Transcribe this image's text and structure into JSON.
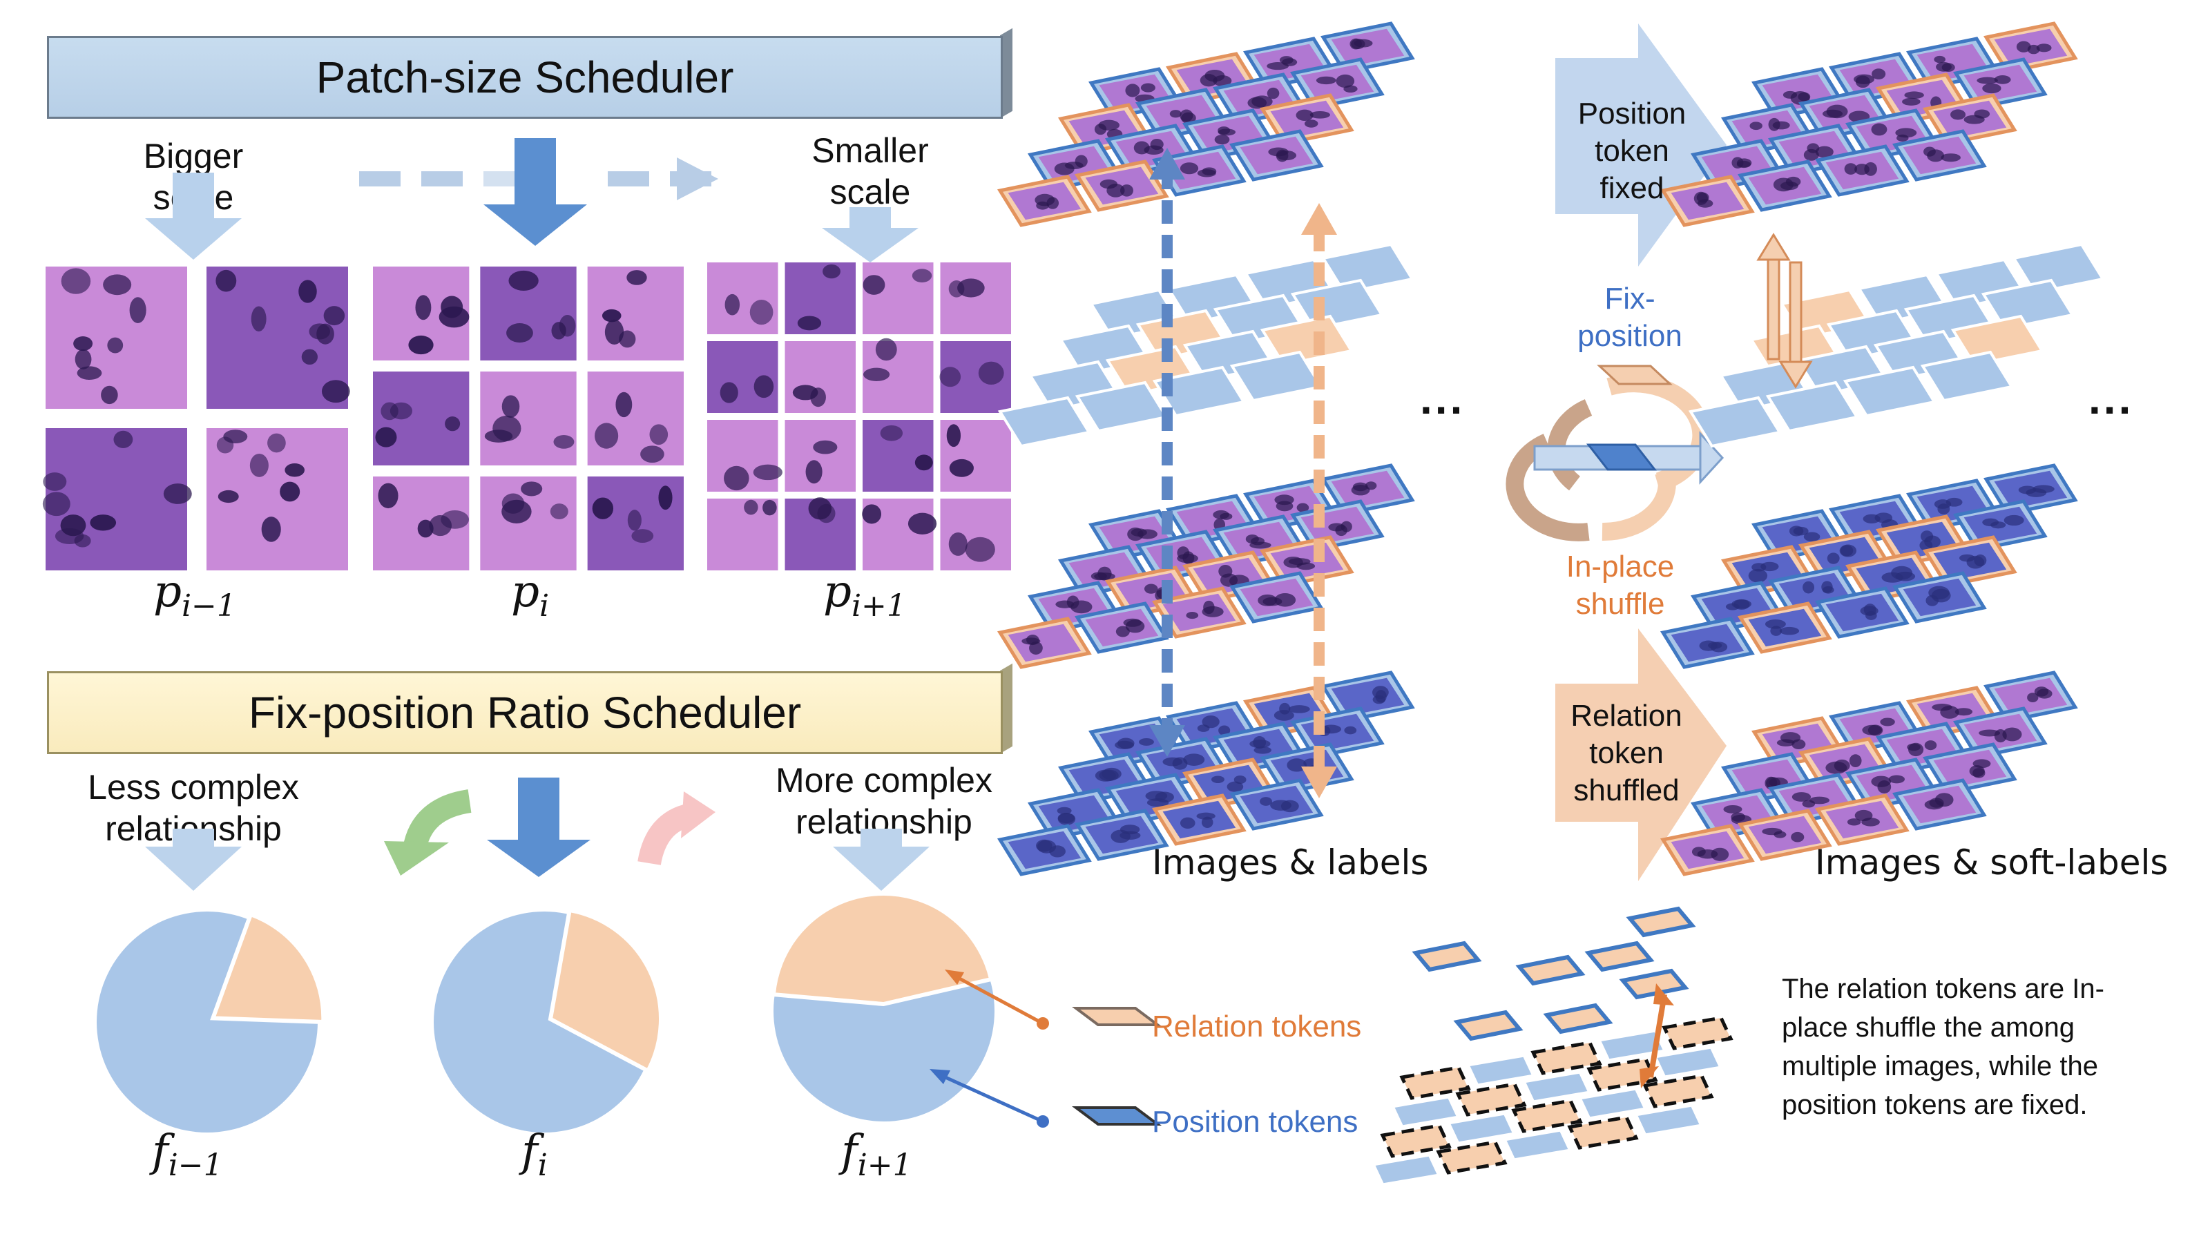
{
  "patch_scheduler": {
    "title": "Patch-size Scheduler",
    "bigger_scale": "Bigger scale",
    "smaller_scale": "Smaller scale",
    "labels": [
      "p_{i−1}",
      "p_i",
      "p_{i+1}"
    ],
    "grid_sizes": [
      2,
      3,
      4
    ]
  },
  "ratio_scheduler": {
    "title": "Fix-position Ratio Scheduler",
    "less_complex": "Less complex relationship",
    "more_complex": "More complex relationship",
    "labels": [
      "f_{i−1}",
      "f_i",
      "f_{i+1}"
    ],
    "relation_fractions": [
      0.2,
      0.3,
      0.45
    ]
  },
  "right_panel": {
    "position_fixed": "Position token fixed",
    "fix_position": "Fix-position",
    "in_place_shuffle": "In-place shuffle",
    "relation_shuffled": "Relation token shuffled",
    "images_labels": "Images & labels",
    "images_soft_labels": "Images & soft-labels",
    "ellipsis": "..."
  },
  "legend": {
    "relation_tokens": "Relation tokens",
    "position_tokens": "Position tokens",
    "note": "The relation tokens are In-place shuffle the among multiple images, while the position tokens are fixed."
  },
  "colors": {
    "position": "#a9c6e8",
    "position_border": "#3f78c2",
    "relation": "#f7cfae",
    "relation_border": "#e3935d",
    "orange_text": "#e07b39",
    "blue_text": "#3e6fc4",
    "tissue_light": "#c98ad8",
    "tissue_dark": "#6a3a9a",
    "nucleus": "#2b1850",
    "he_blue": "#5a66c8"
  }
}
